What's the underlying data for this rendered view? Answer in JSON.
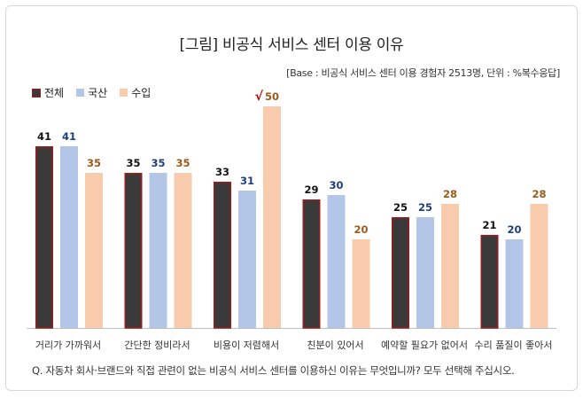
{
  "title": "[그림] 비공식 서비스 센터 이용 이유",
  "base_note": "[Base : 비공식 서비스 센터 이용 경험자 2513명, 단위 : %복수응답]",
  "footnote": "Q. 자동차 회사·브랜드와 직접 관련이 없는 비공식 서비스 센터를 이용하신 이유는 무엇입니까? 모두 선택해 주십시오.",
  "highlight_mark": "√",
  "chart_data": {
    "type": "bar",
    "title": "[그림] 비공식 서비스 센터 이용 이유",
    "categories": [
      "거리가 가까워서",
      "간단한 정비라서",
      "비용이 저렴해서",
      "친분이 있어서",
      "예약할 필요가 없어서",
      "수리 품질이 좋아서"
    ],
    "series": [
      {
        "name": "전체",
        "values": [
          41,
          35,
          33,
          29,
          25,
          21
        ],
        "color": "#3a3a3a",
        "border": "#a11a1a",
        "label_color": "#111111"
      },
      {
        "name": "국산",
        "values": [
          41,
          35,
          31,
          30,
          25,
          20
        ],
        "color": "#b4c6e7",
        "border": "#b4c6e7",
        "label_color": "#1f3f7a"
      },
      {
        "name": "수입",
        "values": [
          35,
          35,
          50,
          20,
          28,
          28
        ],
        "color": "#f8cbad",
        "border": "#f8cbad",
        "label_color": "#9c5a1a"
      }
    ],
    "legend_position": "top-left",
    "ylim": [
      0,
      50
    ],
    "grid": false,
    "xlabel": "",
    "ylabel": "",
    "highlight": {
      "series": "수입",
      "category": "비용이 저렴해서",
      "mark_color": "#c00000"
    }
  }
}
